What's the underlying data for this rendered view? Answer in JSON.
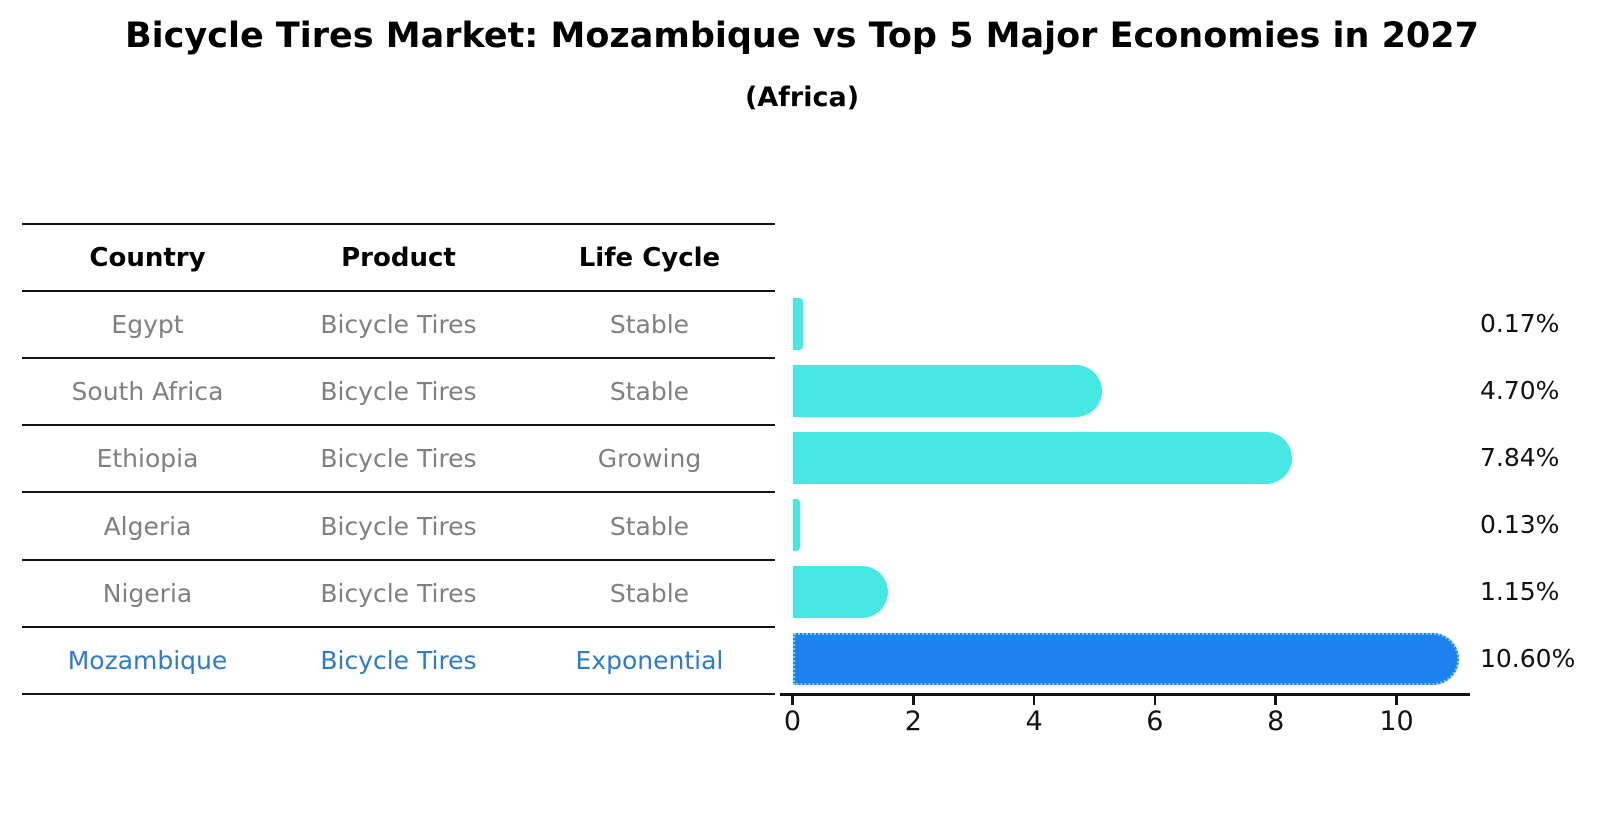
{
  "title": "Bicycle Tires Market: Mozambique vs Top 5 Major Economies in 2027",
  "subtitle": "(Africa)",
  "table": {
    "headers": [
      "Country",
      "Product",
      "Life Cycle"
    ],
    "rows": [
      {
        "country": "Egypt",
        "product": "Bicycle Tires",
        "life_cycle": "Stable",
        "highlight": false
      },
      {
        "country": "South Africa",
        "product": "Bicycle Tires",
        "life_cycle": "Stable",
        "highlight": false
      },
      {
        "country": "Ethiopia",
        "product": "Bicycle Tires",
        "life_cycle": "Growing",
        "highlight": false
      },
      {
        "country": "Algeria",
        "product": "Bicycle Tires",
        "life_cycle": "Stable",
        "highlight": false
      },
      {
        "country": "Nigeria",
        "product": "Bicycle Tires",
        "life_cycle": "Stable",
        "highlight": false
      },
      {
        "country": "Mozambique",
        "product": "Bicycle Tires",
        "life_cycle": "Exponential",
        "highlight": true
      }
    ]
  },
  "chart_data": {
    "type": "bar",
    "orientation": "horizontal",
    "title": "Bicycle Tires Market: Mozambique vs Top 5 Major Economies in 2027",
    "subtitle": "(Africa)",
    "categories": [
      "Egypt",
      "South Africa",
      "Ethiopia",
      "Algeria",
      "Nigeria",
      "Mozambique"
    ],
    "values": [
      0.17,
      4.7,
      7.84,
      0.13,
      1.15,
      10.6
    ],
    "value_labels": [
      "0.17%",
      "4.70%",
      "7.84%",
      "0.13%",
      "1.15%",
      "10.60%"
    ],
    "xticks": [
      0,
      2,
      4,
      6,
      8,
      10
    ],
    "xlim": [
      0,
      11.2
    ],
    "grid": false,
    "legend": false,
    "highlight_index": 5,
    "colors": {
      "bar": "#45E8E2",
      "highlight_bar": "#1B82F0",
      "highlight_border": "#7CCBF4",
      "highlight_text": "#2D7BCE",
      "row_text": "#808080",
      "axis": "#141414"
    }
  }
}
